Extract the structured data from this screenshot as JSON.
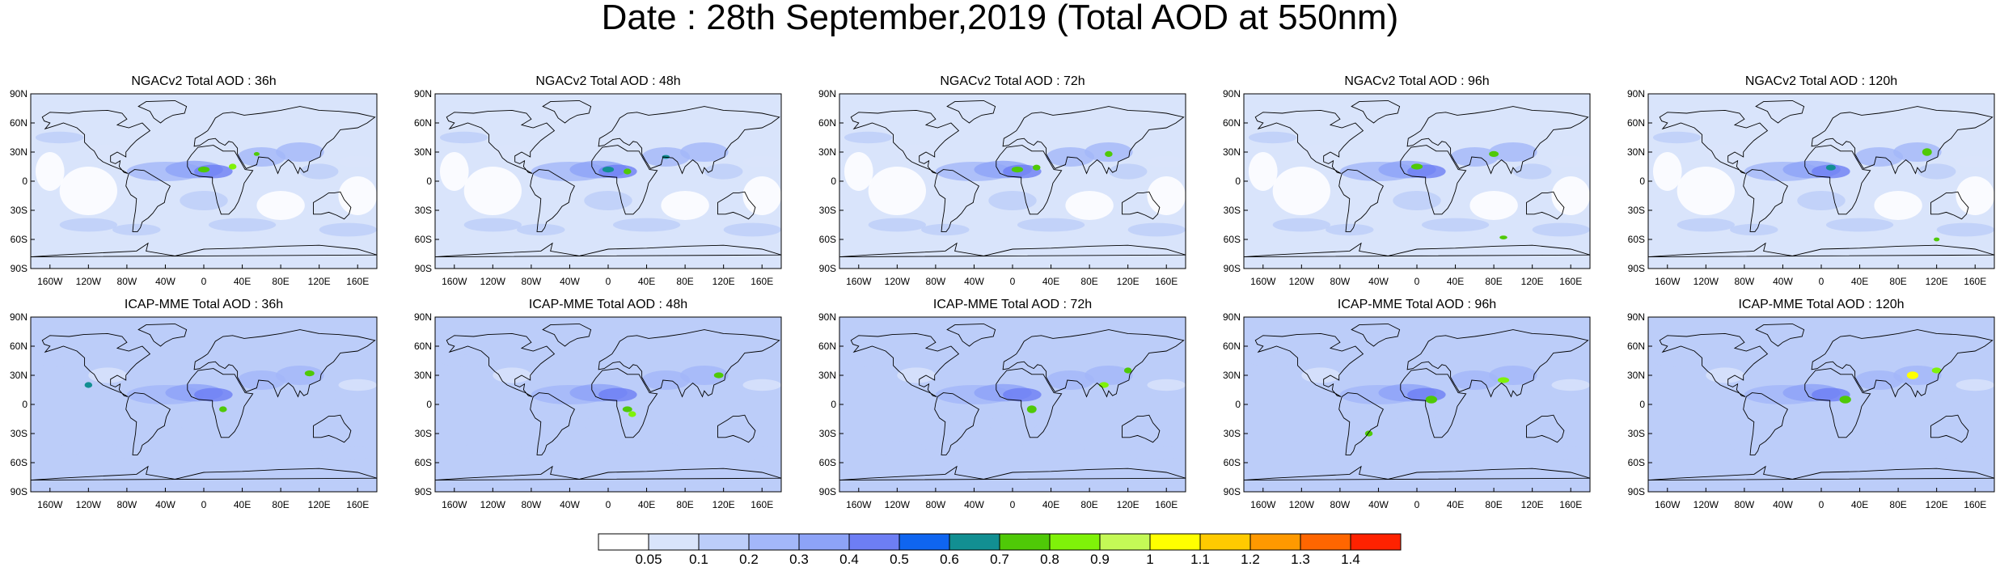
{
  "title": "Date : 28th September,2019 (Total AOD at 550nm)",
  "colors": {
    "levels": [
      "#ffffff",
      "#d9e4fb",
      "#bccdf9",
      "#a3b7f9",
      "#8da3f7",
      "#6d7ef4",
      "#0f65f0",
      "#128f92",
      "#4fc907",
      "#7ff209",
      "#c4f956",
      "#ffff00",
      "#ffca00",
      "#ff9900",
      "#ff6600",
      "#ff2200"
    ],
    "coast": "#000000"
  },
  "chart_data": {
    "type": "heatmap",
    "panel_titles": [
      "NGACv2 Total AOD : 36h",
      "NGACv2 Total AOD : 48h",
      "NGACv2 Total AOD : 72h",
      "NGACv2 Total AOD : 96h",
      "NGACv2 Total AOD : 120h",
      "ICAP-MME Total AOD : 36h",
      "ICAP-MME Total AOD : 48h",
      "ICAP-MME Total AOD : 72h",
      "ICAP-MME Total AOD : 96h",
      "ICAP-MME Total AOD : 120h"
    ],
    "lat_ticks": [
      "90N",
      "60N",
      "30N",
      "0",
      "30S",
      "60S",
      "90S"
    ],
    "lon_ticks": [
      "160W",
      "120W",
      "80W",
      "40W",
      "0",
      "40E",
      "80E",
      "120E",
      "160E"
    ],
    "colorbar_labels": [
      "0.05",
      "0.1",
      "0.2",
      "0.3",
      "0.4",
      "0.5",
      "0.6",
      "0.7",
      "0.8",
      "0.9",
      "1",
      "1.1",
      "1.2",
      "1.3",
      "1.4"
    ],
    "xlim": [
      -180,
      180
    ],
    "ylim": [
      -90,
      90
    ],
    "grid": false,
    "colorbar": "bottom"
  }
}
